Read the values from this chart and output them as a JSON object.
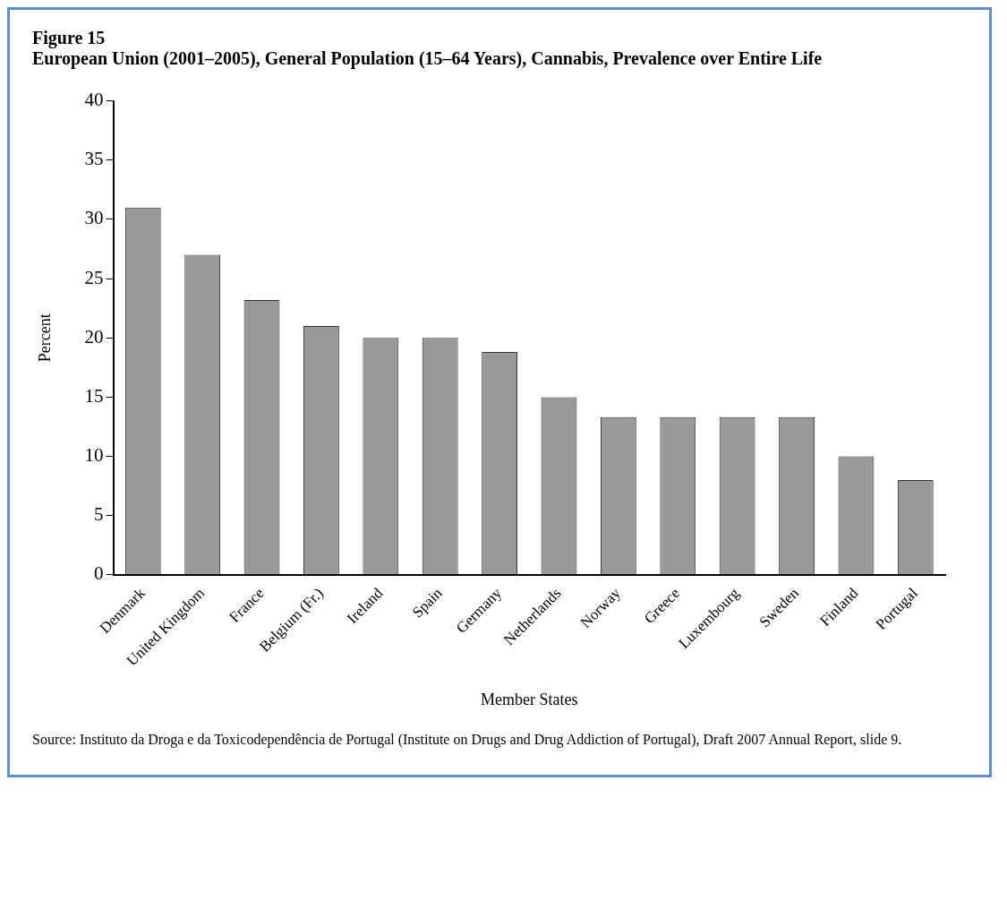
{
  "chart_data": {
    "type": "bar",
    "title": "Figure 15",
    "subtitle": "European Union (2001–2005), General Population (15–64 Years), Cannabis, Prevalence over Entire Life",
    "categories": [
      "Denmark",
      "United Kingdom",
      "France",
      "Belgium (Fr.)",
      "Ireland",
      "Spain",
      "Germany",
      "Netherlands",
      "Norway",
      "Greece",
      "Luxembourg",
      "Sweden",
      "Finland",
      "Portugal"
    ],
    "values": [
      31,
      27,
      23.2,
      21,
      20,
      20,
      18.8,
      15,
      13.3,
      13.3,
      13.3,
      13.3,
      10,
      8
    ],
    "color": "#999999",
    "xlabel": "Member States",
    "ylabel": "Percent",
    "ylim": [
      0,
      40
    ],
    "yticks": [
      0,
      5,
      10,
      15,
      20,
      25,
      30,
      35,
      40
    ],
    "grid": false,
    "legend": false,
    "annotations": [
      "Source: Instituto da Droga e da Toxicodependência de Portugal (Institute on Drugs and Drug Addiction of Portugal), Draft 2007 Annual Report, slide 9."
    ]
  }
}
